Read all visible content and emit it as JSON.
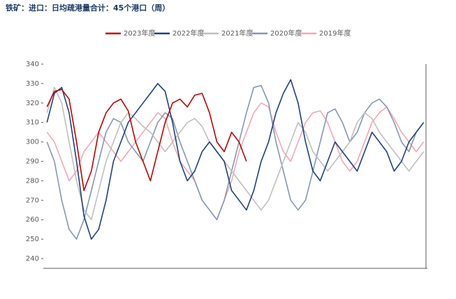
{
  "chart_data": {
    "type": "line",
    "title": "铁矿：进口：日均疏港量合计：45个港口（周）",
    "categories": [
      null,
      null,
      null,
      null,
      null,
      null,
      null,
      null,
      null,
      null,
      null,
      null,
      null,
      null,
      null,
      null,
      null,
      null,
      null,
      null,
      null,
      null,
      null,
      null,
      null,
      null,
      null,
      null,
      null,
      null,
      null,
      null,
      null,
      null,
      null,
      null,
      null,
      null,
      null,
      null,
      null,
      null,
      null,
      null,
      null,
      null,
      null,
      null,
      null,
      null,
      null,
      null
    ],
    "ylim": [
      235,
      340
    ],
    "yticks": [
      240,
      250,
      260,
      270,
      280,
      290,
      300,
      310,
      320,
      330,
      340
    ],
    "legend": "top",
    "series": [
      {
        "name": "2023年度",
        "color": "#c00000",
        "values": [
          318,
          326,
          327,
          322,
          300,
          275,
          285,
          305,
          315,
          320,
          322,
          316,
          300,
          290,
          280,
          295,
          310,
          320,
          322,
          318,
          324,
          325,
          315,
          300,
          295,
          305,
          300,
          290,
          null,
          null,
          null,
          null,
          null,
          null,
          null,
          null,
          null,
          null,
          null,
          null,
          null,
          null,
          null,
          null,
          null,
          null,
          null,
          null,
          null,
          null,
          null,
          null
        ]
      },
      {
        "name": "2022年度",
        "color": "#1f3f7f",
        "values": [
          310,
          325,
          328,
          315,
          290,
          262,
          250,
          255,
          270,
          290,
          300,
          310,
          315,
          320,
          325,
          330,
          326,
          310,
          290,
          280,
          285,
          295,
          300,
          295,
          290,
          275,
          270,
          265,
          275,
          290,
          300,
          315,
          325,
          332,
          320,
          300,
          285,
          280,
          290,
          300,
          295,
          290,
          285,
          295,
          305,
          300,
          295,
          285,
          290,
          300,
          305,
          310
        ]
      },
      {
        "name": "2021年度",
        "color": "#bfbfbf",
        "values": [
          315,
          328,
          320,
          300,
          280,
          265,
          260,
          275,
          290,
          300,
          310,
          315,
          312,
          308,
          305,
          300,
          295,
          300,
          305,
          310,
          312,
          308,
          300,
          295,
          290,
          285,
          280,
          275,
          270,
          265,
          270,
          280,
          290,
          300,
          310,
          305,
          295,
          290,
          285,
          290,
          295,
          300,
          310,
          315,
          312,
          305,
          300,
          295,
          290,
          285,
          290,
          295
        ]
      },
      {
        "name": "2020年度",
        "color": "#8497b0",
        "values": [
          300,
          290,
          270,
          255,
          250,
          260,
          275,
          290,
          305,
          312,
          310,
          300,
          295,
          290,
          300,
          310,
          315,
          312,
          300,
          290,
          280,
          270,
          265,
          260,
          270,
          285,
          300,
          315,
          328,
          329,
          320,
          300,
          285,
          270,
          265,
          270,
          285,
          300,
          315,
          317,
          310,
          300,
          305,
          315,
          320,
          322,
          318,
          310,
          300,
          295,
          305,
          310
        ]
      },
      {
        "name": "2019年度",
        "color": "#f4a6b4",
        "values": [
          305,
          300,
          290,
          280,
          285,
          295,
          300,
          305,
          300,
          295,
          290,
          295,
          300,
          305,
          310,
          315,
          312,
          300,
          290,
          285,
          280,
          270,
          265,
          260,
          270,
          280,
          295,
          305,
          315,
          320,
          318,
          305,
          295,
          290,
          300,
          310,
          315,
          316,
          310,
          300,
          290,
          285,
          290,
          300,
          310,
          315,
          318,
          312,
          305,
          300,
          295,
          300
        ]
      }
    ]
  }
}
